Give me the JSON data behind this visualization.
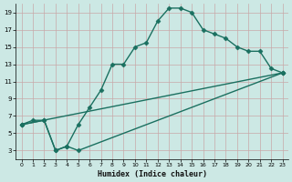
{
  "xlabel": "Humidex (Indice chaleur)",
  "bg_color": "#cce8e4",
  "grid_color": "#c8a8a8",
  "line_color": "#1a7060",
  "marker": "D",
  "markersize": 2.5,
  "linewidth": 1.0,
  "xlim": [
    -0.5,
    23.5
  ],
  "ylim": [
    2,
    20
  ],
  "xticks": [
    0,
    1,
    2,
    3,
    4,
    5,
    6,
    7,
    8,
    9,
    10,
    11,
    12,
    13,
    14,
    15,
    16,
    17,
    18,
    19,
    20,
    21,
    22,
    23
  ],
  "yticks": [
    3,
    5,
    7,
    9,
    11,
    13,
    15,
    17,
    19
  ],
  "line1_x": [
    0,
    1,
    2,
    3,
    4,
    5,
    6,
    7,
    8,
    9,
    10,
    11,
    12,
    13,
    14,
    15,
    16,
    17,
    18,
    19,
    20,
    21,
    22,
    23
  ],
  "line1_y": [
    6,
    6.5,
    6.5,
    3,
    3.5,
    6,
    8,
    10,
    13,
    13,
    15,
    15.5,
    18,
    19.5,
    19.5,
    19,
    17,
    16.5,
    16,
    15,
    14.5,
    14.5,
    12.5,
    12
  ],
  "line2_x": [
    0,
    2,
    3,
    4,
    5,
    23
  ],
  "line2_y": [
    6,
    6.5,
    3,
    3.5,
    3,
    12
  ],
  "line3_x": [
    0,
    23
  ],
  "line3_y": [
    6,
    12
  ]
}
